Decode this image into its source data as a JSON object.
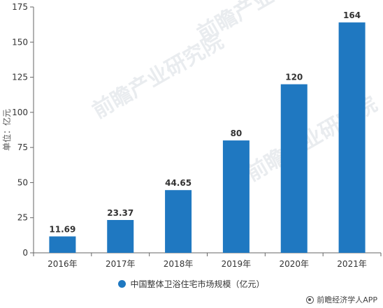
{
  "chart_data": {
    "type": "bar",
    "categories": [
      "2016年",
      "2017年",
      "2018年",
      "2019年",
      "2020年",
      "2021年"
    ],
    "series": [
      {
        "name": "中国整体卫浴住宅市场规模（亿元）",
        "values": [
          11.69,
          23.37,
          44.65,
          80,
          120,
          164
        ],
        "labels": [
          "11.69",
          "23.37",
          "44.65",
          "80",
          "120",
          "164"
        ]
      }
    ],
    "ylabel": "单位：亿元",
    "ylim": [
      0,
      175
    ],
    "yticks": [
      0,
      25,
      50,
      75,
      100,
      125,
      150,
      175
    ],
    "grid": false,
    "legend_position": "bottom",
    "bar_color": "#1f78c1"
  },
  "credit": {
    "text": "前瞻经济学人APP"
  }
}
